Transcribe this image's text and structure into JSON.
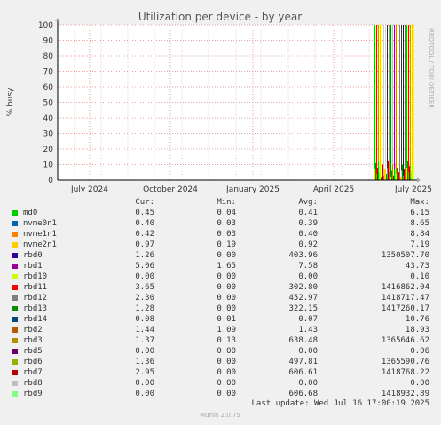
{
  "chart_data": {
    "type": "bar",
    "title": "Utilization per device - by year",
    "ylabel": "% busy",
    "xlabel": "",
    "ylim": [
      0,
      100
    ],
    "yticks": [
      "0",
      "10",
      "20",
      "30",
      "40",
      "50",
      "60",
      "70",
      "80",
      "90",
      "100"
    ],
    "xticks": [
      "July 2024",
      "October 2024",
      "January 2025",
      "April 2025",
      "July 2025"
    ],
    "watermark": "RRDTOOL / TOBI OETIKER",
    "columns": [
      "Cur:",
      "Min:",
      "Avg:",
      "Max:"
    ],
    "series": [
      {
        "name": "md0",
        "color": "#00cc00",
        "cur": "0.45",
        "min": "0.04",
        "avg": "0.41",
        "max": "6.15"
      },
      {
        "name": "nvme0n1",
        "color": "#0066b3",
        "cur": "0.40",
        "min": "0.03",
        "avg": "0.39",
        "max": "8.65"
      },
      {
        "name": "nvme1n1",
        "color": "#ff8000",
        "cur": "0.42",
        "min": "0.03",
        "avg": "0.40",
        "max": "8.84"
      },
      {
        "name": "nvme2n1",
        "color": "#ffcc00",
        "cur": "0.97",
        "min": "0.19",
        "avg": "0.92",
        "max": "7.19"
      },
      {
        "name": "rbd0",
        "color": "#330099",
        "cur": "1.26",
        "min": "0.00",
        "avg": "403.96",
        "max": "1350507.70"
      },
      {
        "name": "rbd1",
        "color": "#990099",
        "cur": "5.06",
        "min": "1.65",
        "avg": "7.58",
        "max": "43.73"
      },
      {
        "name": "rbd10",
        "color": "#ccff00",
        "cur": "0.00",
        "min": "0.00",
        "avg": "0.00",
        "max": "0.10"
      },
      {
        "name": "rbd11",
        "color": "#ff0000",
        "cur": "3.65",
        "min": "0.00",
        "avg": "302.80",
        "max": "1416862.04"
      },
      {
        "name": "rbd12",
        "color": "#808080",
        "cur": "2.30",
        "min": "0.00",
        "avg": "452.97",
        "max": "1418717.47"
      },
      {
        "name": "rbd13",
        "color": "#008f00",
        "cur": "1.28",
        "min": "0.00",
        "avg": "322.15",
        "max": "1417260.17"
      },
      {
        "name": "rbd14",
        "color": "#00487d",
        "cur": "0.08",
        "min": "0.01",
        "avg": "0.07",
        "max": "10.76"
      },
      {
        "name": "rbd2",
        "color": "#b35a00",
        "cur": "1.44",
        "min": "1.09",
        "avg": "1.43",
        "max": "18.93"
      },
      {
        "name": "rbd3",
        "color": "#b38f00",
        "cur": "1.37",
        "min": "0.13",
        "avg": "638.48",
        "max": "1365646.62"
      },
      {
        "name": "rbd5",
        "color": "#6b006b",
        "cur": "0.00",
        "min": "0.00",
        "avg": "0.00",
        "max": "0.06"
      },
      {
        "name": "rbd6",
        "color": "#8fb300",
        "cur": "1.36",
        "min": "0.00",
        "avg": "497.81",
        "max": "1365590.76"
      },
      {
        "name": "rbd7",
        "color": "#b30000",
        "cur": "2.95",
        "min": "0.00",
        "avg": "606.61",
        "max": "1418768.22"
      },
      {
        "name": "rbd8",
        "color": "#bebebe",
        "cur": "0.00",
        "min": "0.00",
        "avg": "0.00",
        "max": "0.00"
      },
      {
        "name": "rbd9",
        "color": "#80ff80",
        "cur": "0.00",
        "min": "0.00",
        "avg": "606.68",
        "max": "1418932.89"
      }
    ]
  },
  "footer": {
    "last_update": "Last update: Wed Jul 16 17:00:19 2025",
    "munin": "Munin 2.0.75"
  }
}
